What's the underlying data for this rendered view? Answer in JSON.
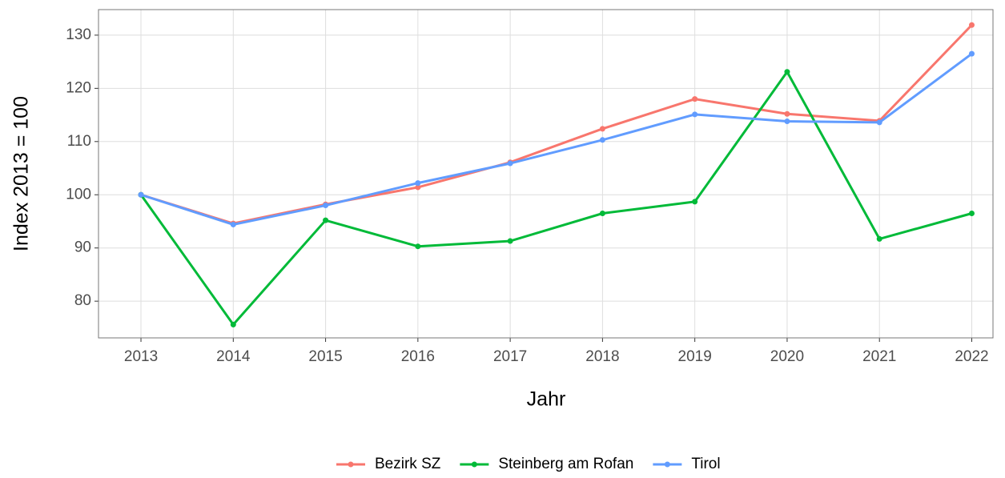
{
  "chart_data": {
    "type": "line",
    "x_label": "Jahr",
    "y_label": "Index  2013  = 100",
    "x": [
      2013,
      2014,
      2015,
      2016,
      2017,
      2018,
      2019,
      2020,
      2021,
      2022
    ],
    "series": [
      {
        "name": "Bezirk SZ",
        "color": "#F8766D",
        "values": [
          100,
          94.6,
          98.2,
          101.4,
          106.1,
          112.4,
          118.0,
          115.2,
          113.9,
          131.9
        ]
      },
      {
        "name": "Steinberg am Rofan",
        "color": "#00BA38",
        "values": [
          100,
          75.6,
          95.2,
          90.3,
          91.3,
          96.5,
          98.7,
          123.1,
          91.7,
          96.5
        ]
      },
      {
        "name": "Tirol",
        "color": "#619CFF",
        "values": [
          100,
          94.4,
          98.0,
          102.2,
          105.9,
          110.3,
          115.1,
          113.8,
          113.6,
          126.5
        ]
      }
    ],
    "xlim": [
      2012.54,
      2022.23
    ],
    "xticks": [
      2013,
      2014,
      2015,
      2016,
      2017,
      2018,
      2019,
      2020,
      2021,
      2022
    ],
    "ylim": [
      73.1,
      134.8
    ],
    "yticks": [
      80,
      90,
      100,
      110,
      120,
      130
    ],
    "grid": true,
    "legend": "bottom"
  }
}
